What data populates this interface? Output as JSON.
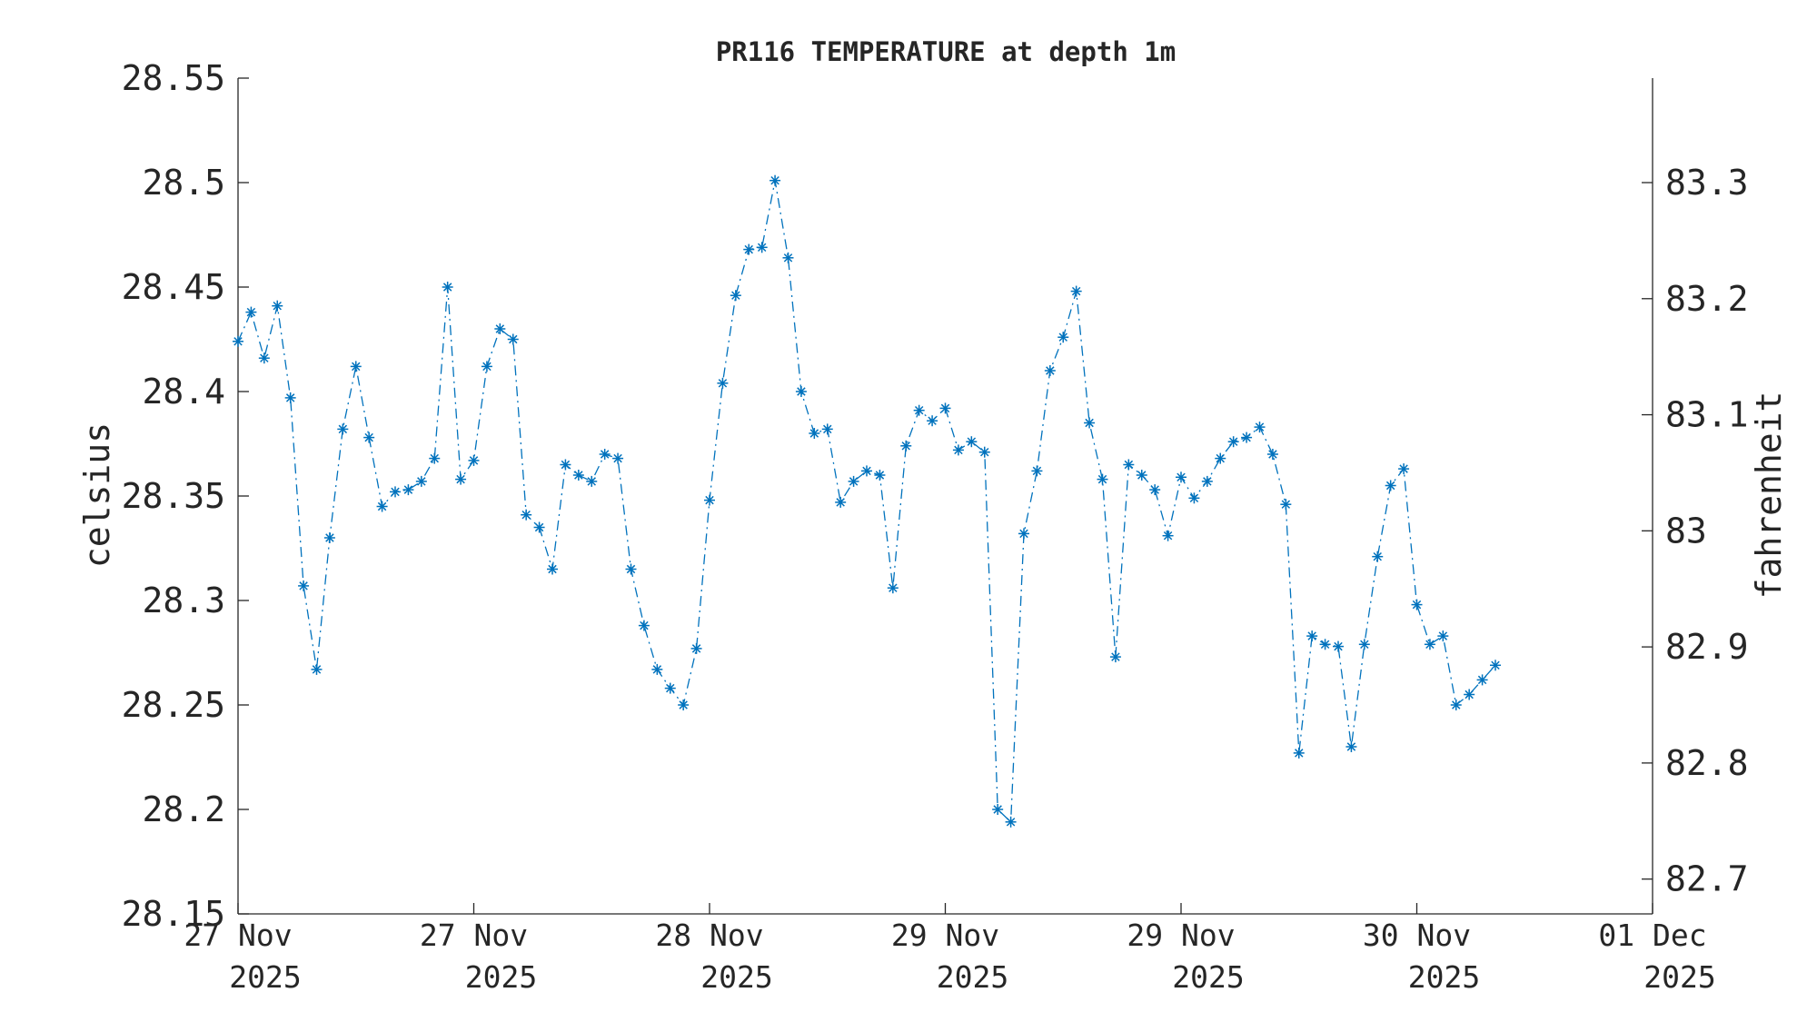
{
  "chart_data": {
    "type": "line",
    "title": "PR116 TEMPERATURE at depth 1m",
    "ylabel": "celsius",
    "ylabel_right": "fahrenheit",
    "ylim": [
      28.15,
      28.55
    ],
    "ylim_right": [
      82.67,
      83.39
    ],
    "yticks": [
      "28.15",
      "28.2",
      "28.25",
      "28.3",
      "28.35",
      "28.4",
      "28.45",
      "28.5",
      "28.55"
    ],
    "yticks_right": [
      "82.7",
      "82.8",
      "82.9",
      "83",
      "83.1",
      "83.2",
      "83.3"
    ],
    "xlim": [
      "2025-11-26 12:00",
      "2025-12-01 00:00"
    ],
    "xtick_labels": [
      {
        "line1": "27 Nov",
        "line2": "2025"
      },
      {
        "line1": "27 Nov",
        "line2": "2025"
      },
      {
        "line1": "28 Nov",
        "line2": "2025"
      },
      {
        "line1": "29 Nov",
        "line2": "2025"
      },
      {
        "line1": "29 Nov",
        "line2": "2025"
      },
      {
        "line1": "30 Nov",
        "line2": "2025"
      },
      {
        "line1": "01 Dec",
        "line2": "2025"
      }
    ],
    "grid": false,
    "legend": false,
    "color": "#0072BD",
    "marker": "asterisk",
    "line_style": "dash-dot",
    "series": [
      {
        "x": [
          "2025-11-26 12:00",
          "2025-11-26 13:00",
          "2025-11-26 14:00",
          "2025-11-26 15:00",
          "2025-11-26 16:00",
          "2025-11-26 17:00",
          "2025-11-26 18:00",
          "2025-11-26 19:00",
          "2025-11-26 20:00",
          "2025-11-26 21:00",
          "2025-11-26 22:00",
          "2025-11-26 23:00",
          "2025-11-27 00:00",
          "2025-11-27 01:00",
          "2025-11-27 02:00",
          "2025-11-27 03:00",
          "2025-11-27 04:00",
          "2025-11-27 05:00",
          "2025-11-27 06:00",
          "2025-11-27 07:00",
          "2025-11-27 08:00",
          "2025-11-27 09:00",
          "2025-11-27 10:00",
          "2025-11-27 11:00",
          "2025-11-27 12:00",
          "2025-11-27 13:00",
          "2025-11-27 14:00",
          "2025-11-27 15:00",
          "2025-11-27 16:00",
          "2025-11-27 17:00",
          "2025-11-27 18:00",
          "2025-11-27 19:00",
          "2025-11-27 20:00",
          "2025-11-27 21:00",
          "2025-11-27 22:00",
          "2025-11-27 23:00",
          "2025-11-28 00:00",
          "2025-11-28 01:00",
          "2025-11-28 02:00",
          "2025-11-28 03:00",
          "2025-11-28 04:00",
          "2025-11-28 05:00",
          "2025-11-28 06:00",
          "2025-11-28 07:00",
          "2025-11-28 08:00",
          "2025-11-28 09:00",
          "2025-11-28 10:00",
          "2025-11-28 11:00",
          "2025-11-28 12:00",
          "2025-11-28 13:00",
          "2025-11-28 14:00",
          "2025-11-28 15:00",
          "2025-11-28 16:00",
          "2025-11-28 17:00",
          "2025-11-28 18:00",
          "2025-11-28 19:00",
          "2025-11-28 20:00",
          "2025-11-28 21:00",
          "2025-11-28 22:00",
          "2025-11-28 23:00",
          "2025-11-29 00:00",
          "2025-11-29 01:00",
          "2025-11-29 02:00",
          "2025-11-29 03:00",
          "2025-11-29 04:00",
          "2025-11-29 05:00",
          "2025-11-29 06:00",
          "2025-11-29 07:00",
          "2025-11-29 08:00",
          "2025-11-29 09:00",
          "2025-11-29 10:00",
          "2025-11-29 11:00",
          "2025-11-29 12:00",
          "2025-11-29 13:00",
          "2025-11-29 14:00",
          "2025-11-29 15:00",
          "2025-11-29 16:00",
          "2025-11-29 17:00",
          "2025-11-29 18:00",
          "2025-11-29 19:00",
          "2025-11-29 20:00",
          "2025-11-29 21:00",
          "2025-11-29 22:00",
          "2025-11-29 23:00",
          "2025-11-30 00:00",
          "2025-11-30 01:00",
          "2025-11-30 02:00",
          "2025-11-30 03:00",
          "2025-11-30 04:00",
          "2025-11-30 05:00",
          "2025-11-30 06:00",
          "2025-11-30 07:00",
          "2025-11-30 08:00",
          "2025-11-30 09:00",
          "2025-11-30 10:00",
          "2025-11-30 11:00",
          "2025-11-30 12:00"
        ],
        "y": [
          28.424,
          28.438,
          28.416,
          28.441,
          28.397,
          28.307,
          28.267,
          28.33,
          28.382,
          28.412,
          28.378,
          28.345,
          28.352,
          28.353,
          28.357,
          28.368,
          28.45,
          28.358,
          28.367,
          28.412,
          28.43,
          28.425,
          28.341,
          28.335,
          28.315,
          28.365,
          28.36,
          28.357,
          28.37,
          28.368,
          28.315,
          28.288,
          28.267,
          28.258,
          28.25,
          28.277,
          28.348,
          28.404,
          28.446,
          28.468,
          28.469,
          28.501,
          28.464,
          28.4,
          28.38,
          28.382,
          28.347,
          28.357,
          28.362,
          28.36,
          28.306,
          28.374,
          28.391,
          28.386,
          28.392,
          28.372,
          28.376,
          28.371,
          28.2,
          28.194,
          28.332,
          28.362,
          28.41,
          28.426,
          28.448,
          28.385,
          28.358,
          28.273,
          28.365,
          28.36,
          28.353,
          28.331,
          28.359,
          28.349,
          28.357,
          28.368,
          28.376,
          28.378,
          28.383,
          28.37,
          28.346,
          28.227,
          28.283,
          28.279,
          28.278,
          28.23,
          28.279,
          28.321,
          28.355,
          28.363,
          28.298,
          28.279,
          28.283,
          28.25,
          28.255,
          28.262,
          28.269
        ]
      }
    ]
  }
}
